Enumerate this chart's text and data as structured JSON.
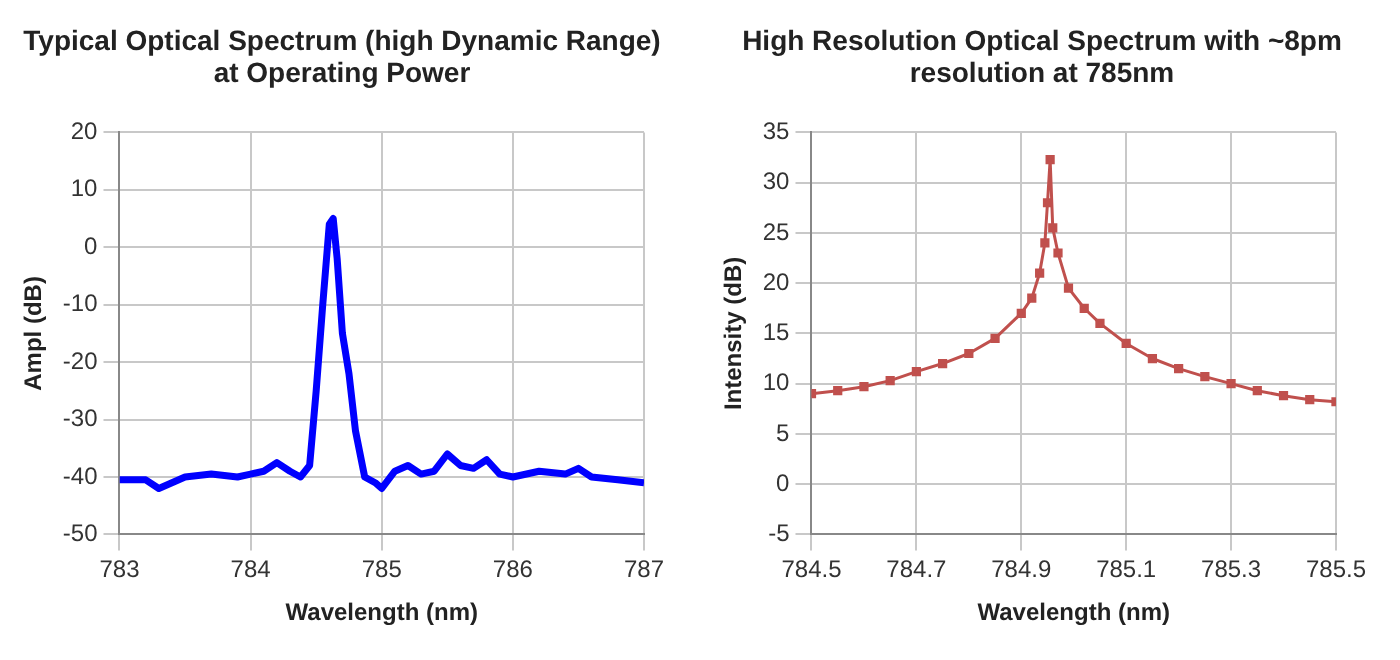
{
  "chart_data": [
    {
      "type": "line",
      "title": "Typical Optical Spectrum (high Dynamic Range) at Operating Power",
      "xlabel": "Wavelength (nm)",
      "ylabel": "Ampl (dB)",
      "xlim": [
        783,
        787
      ],
      "xticks": [
        783,
        784,
        785,
        786,
        787
      ],
      "ylim": [
        -50,
        20
      ],
      "yticks": [
        -50,
        -40,
        -30,
        -20,
        -10,
        0,
        10,
        20
      ],
      "grid": true,
      "legend": false,
      "marker": "none",
      "series": [
        {
          "color": "#0000ff",
          "x": [
            783,
            783.2,
            783.3,
            783.5,
            783.7,
            783.9,
            784.0,
            784.1,
            784.2,
            784.3,
            784.38,
            784.45,
            784.5,
            784.55,
            784.6,
            784.63,
            784.66,
            784.7,
            784.75,
            784.8,
            784.87,
            784.95,
            785.0,
            785.1,
            785.2,
            785.3,
            785.4,
            785.5,
            785.6,
            785.7,
            785.8,
            785.9,
            786.0,
            786.2,
            786.4,
            786.5,
            786.6,
            786.8,
            787
          ],
          "values": [
            -40.5,
            -40.5,
            -42,
            -40,
            -39.5,
            -40,
            -39.5,
            -39,
            -37.5,
            -39,
            -40,
            -38,
            -25,
            -10,
            4,
            5,
            -2,
            -15,
            -22,
            -32,
            -40,
            -41,
            -42,
            -39,
            -38,
            -39.5,
            -39,
            -36,
            -38,
            -38.5,
            -37,
            -39.5,
            -40,
            -39,
            -39.5,
            -38.5,
            -40,
            -40.5,
            -41
          ]
        }
      ]
    },
    {
      "type": "line",
      "title": "High Resolution Optical Spectrum with ~8pm resolution at 785nm",
      "xlabel": "Wavelength (nm)",
      "ylabel": "Intensity (dB)",
      "xlim": [
        784.5,
        785.5
      ],
      "xticks": [
        784.5,
        784.7,
        784.9,
        785.1,
        785.3,
        785.5
      ],
      "ylim": [
        -5,
        35
      ],
      "yticks": [
        -5,
        0,
        5,
        10,
        15,
        20,
        25,
        30,
        35
      ],
      "grid": true,
      "legend": false,
      "marker": "square",
      "series": [
        {
          "color": "#c0504d",
          "x": [
            784.5,
            784.55,
            784.6,
            784.65,
            784.7,
            784.75,
            784.8,
            784.85,
            784.9,
            784.92,
            784.935,
            784.945,
            784.95,
            784.955,
            784.96,
            784.97,
            784.99,
            785.02,
            785.05,
            785.1,
            785.15,
            785.2,
            785.25,
            785.3,
            785.35,
            785.4,
            785.45,
            785.5
          ],
          "values": [
            9,
            9.3,
            9.7,
            10.3,
            11.2,
            12,
            13,
            14.5,
            17,
            18.5,
            21,
            24,
            28,
            32.3,
            25.5,
            23,
            19.5,
            17.5,
            16,
            14,
            12.5,
            11.5,
            10.7,
            10,
            9.3,
            8.8,
            8.4,
            8.2
          ]
        }
      ]
    }
  ]
}
